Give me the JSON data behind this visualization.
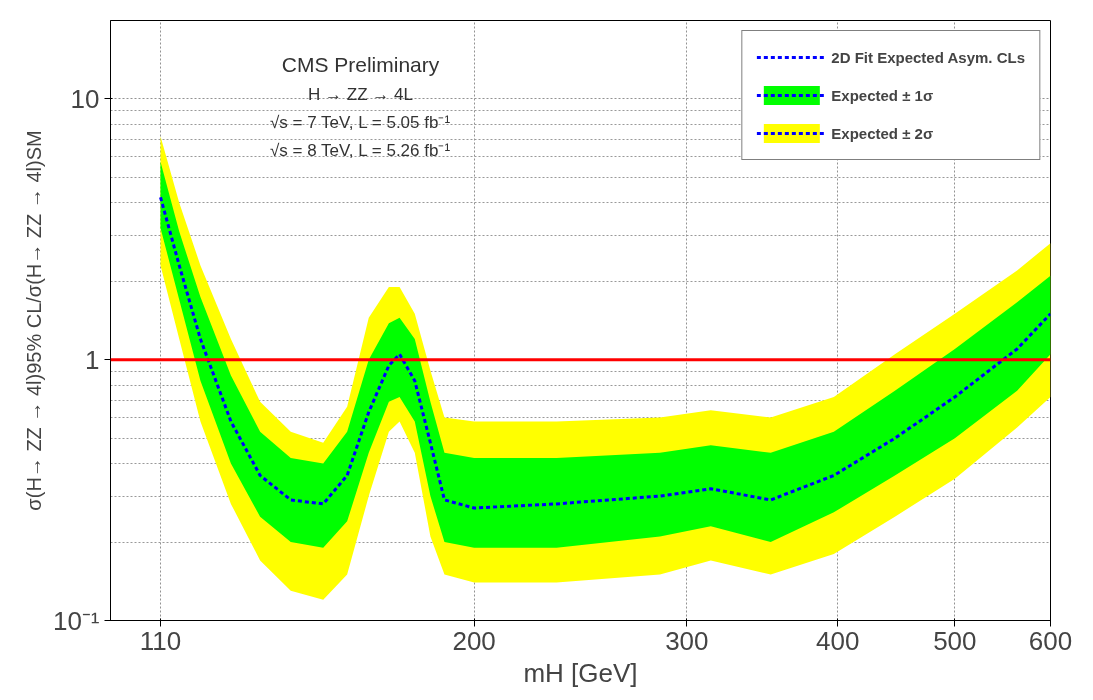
{
  "chart_data": {
    "type": "line",
    "xlabel": "mH [GeV]",
    "ylabel": "σ(H→ ZZ → 4l)95% CL/σ(H→ ZZ → 4l)SM",
    "x": [
      110,
      114,
      118.7,
      125.8,
      133,
      141,
      150,
      157,
      163.6,
      170,
      173.5,
      178.6,
      184,
      189,
      200,
      234,
      285,
      314,
      352,
      397,
      446,
      500,
      563,
      600
    ],
    "series": [
      {
        "name": "Expected ± 2σ",
        "color": "#ffff00",
        "values": [
          null,
          null,
          null,
          null,
          null,
          null,
          null,
          null,
          null,
          null,
          null,
          null,
          null,
          null,
          null,
          null,
          null,
          null,
          null,
          null,
          null,
          null,
          null,
          null
        ],
        "lower": [
          2.3,
          1.2,
          0.58,
          0.28,
          0.17,
          0.13,
          0.12,
          0.15,
          0.3,
          0.53,
          0.58,
          0.44,
          0.21,
          0.15,
          0.14,
          0.14,
          0.15,
          0.17,
          0.15,
          0.18,
          0.25,
          0.35,
          0.55,
          0.72
        ],
        "upper": [
          7.2,
          4.0,
          2.3,
          1.2,
          0.69,
          0.53,
          0.48,
          0.66,
          1.45,
          1.9,
          1.9,
          1.5,
          0.91,
          0.6,
          0.58,
          0.58,
          0.6,
          0.64,
          0.6,
          0.72,
          1.05,
          1.5,
          2.2,
          2.8
        ]
      },
      {
        "name": "Expected ± 1σ",
        "color": "#00ff00",
        "values": [
          null,
          null,
          null,
          null,
          null,
          null,
          null,
          null,
          null,
          null,
          null,
          null,
          null,
          null,
          null,
          null,
          null,
          null,
          null,
          null,
          null,
          null,
          null,
          null
        ],
        "lower": [
          3.2,
          1.7,
          0.83,
          0.4,
          0.25,
          0.2,
          0.19,
          0.24,
          0.44,
          0.69,
          0.72,
          0.58,
          0.3,
          0.2,
          0.19,
          0.19,
          0.21,
          0.23,
          0.2,
          0.26,
          0.36,
          0.5,
          0.76,
          1.05
        ],
        "upper": [
          5.75,
          3.1,
          1.74,
          0.87,
          0.53,
          0.42,
          0.4,
          0.53,
          1.0,
          1.38,
          1.45,
          1.2,
          0.69,
          0.44,
          0.42,
          0.42,
          0.44,
          0.47,
          0.44,
          0.53,
          0.76,
          1.1,
          1.66,
          2.1
        ]
      },
      {
        "name": "2D Fit Expected Asym. CLs",
        "color": "#0000ff",
        "values": [
          4.2,
          2.3,
          1.2,
          0.58,
          0.36,
          0.29,
          0.28,
          0.36,
          0.63,
          0.95,
          1.05,
          0.83,
          0.48,
          0.29,
          0.27,
          0.28,
          0.3,
          0.32,
          0.29,
          0.36,
          0.5,
          0.72,
          1.1,
          1.5
        ]
      }
    ],
    "line_style": "dashed",
    "log": "xy",
    "xlim": [
      100,
      600
    ],
    "xticks": [
      110,
      200,
      300,
      400,
      500,
      600
    ],
    "ylim": [
      0.1,
      20
    ],
    "yticks": [
      {
        "value": 0.1,
        "label": "10⁻¹"
      },
      1,
      10
    ],
    "grid": true,
    "legend": "top right",
    "ref_lines": [
      {
        "axis": "y",
        "value": 1,
        "color": "#ff0000"
      }
    ],
    "annotations": [
      "CMS Preliminary",
      "H → ZZ → 4L",
      "√s = 7 TeV, L = 5.05 fb⁻¹",
      "√s = 8 TeV, L = 5.26 fb⁻¹"
    ]
  }
}
